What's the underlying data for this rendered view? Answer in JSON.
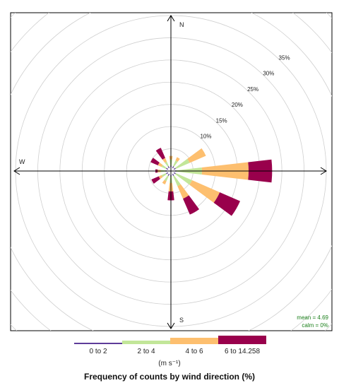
{
  "chart_data": {
    "type": "windrose",
    "title": "Frequency of counts by wind direction (%)",
    "units_label": "(m s⁻¹)",
    "directions": [
      "N",
      "E",
      "S",
      "W"
    ],
    "radial_ticks": [
      {
        "value": 10,
        "label": "10%"
      },
      {
        "value": 15,
        "label": "15%"
      },
      {
        "value": 20,
        "label": "20%"
      },
      {
        "value": 25,
        "label": "25%"
      },
      {
        "value": 30,
        "label": "30%"
      },
      {
        "value": 35,
        "label": "35%"
      }
    ],
    "grid_step": 5,
    "rmax": 35,
    "legend_position": "bottom",
    "stats": {
      "mean": "mean = 4.69",
      "calm": "calm = 0%"
    },
    "bins": [
      {
        "label": "0 to 2",
        "color": "#5e3c99"
      },
      {
        "label": "2 to 4",
        "color": "#c2e699"
      },
      {
        "label": "4 to 6",
        "color": "#fdbf6f"
      },
      {
        "label": "6 to 14.258",
        "color": "#99004c"
      }
    ],
    "series": [
      {
        "angle": 0,
        "cum": [
          1.2,
          2.6,
          3.4,
          3.4
        ]
      },
      {
        "angle": 30,
        "cum": [
          1.2,
          2.6,
          3.4,
          3.4
        ]
      },
      {
        "angle": 60,
        "cum": [
          1.2,
          4.6,
          8.6,
          8.6
        ]
      },
      {
        "angle": 90,
        "cum": [
          1.2,
          7.0,
          17.5,
          22.8
        ]
      },
      {
        "angle": 120,
        "cum": [
          1.2,
          5.2,
          12.0,
          17.0
        ]
      },
      {
        "angle": 150,
        "cum": [
          1.2,
          3.7,
          6.8,
          10.7
        ]
      },
      {
        "angle": 180,
        "cum": [
          1.2,
          2.7,
          4.6,
          6.6
        ]
      },
      {
        "angle": 210,
        "cum": [
          1.2,
          2.5,
          3.3,
          3.3
        ]
      },
      {
        "angle": 240,
        "cum": [
          1.2,
          2.3,
          3.0,
          4.8
        ]
      },
      {
        "angle": 270,
        "cum": [
          1.2,
          2.3,
          3.0,
          3.5
        ]
      },
      {
        "angle": 300,
        "cum": [
          1.2,
          2.3,
          3.2,
          5.0
        ]
      },
      {
        "angle": 330,
        "cum": [
          1.2,
          2.3,
          3.2,
          5.7
        ]
      }
    ]
  }
}
